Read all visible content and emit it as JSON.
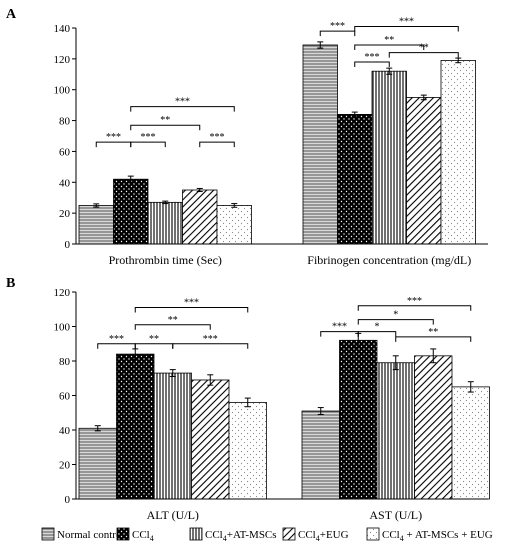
{
  "legend": [
    {
      "label": "Normal control",
      "pattern": "pat-h"
    },
    {
      "label": "CCl4",
      "pattern": "pat-dots"
    },
    {
      "label": "CCl4+AT-MSCs",
      "pattern": "pat-v"
    },
    {
      "label": "CCl4+EUG",
      "pattern": "pat-diag"
    },
    {
      "label": "CCl4 + AT-MSCs + EUG",
      "pattern": "pat-lightdots"
    }
  ],
  "chart_data": [
    {
      "type": "bar",
      "panel_label": "A",
      "categories": [
        "Prothrombin time (Sec)",
        "Fibrinogen concentration (mg/dL)"
      ],
      "series": [
        {
          "name": "Normal control",
          "values": [
            25,
            129
          ],
          "errors": [
            1,
            2
          ]
        },
        {
          "name": "CCl4",
          "values": [
            42,
            84
          ],
          "errors": [
            2,
            1.5
          ]
        },
        {
          "name": "CCl4+AT-MSCs",
          "values": [
            27,
            112
          ],
          "errors": [
            0.8,
            2
          ]
        },
        {
          "name": "CCl4+EUG",
          "values": [
            35,
            95
          ],
          "errors": [
            1,
            1.5
          ]
        },
        {
          "name": "CCl4 + AT-MSCs + EUG",
          "values": [
            25,
            119
          ],
          "errors": [
            1.2,
            1.5
          ]
        }
      ],
      "ylim": [
        0,
        140
      ],
      "yticks": [
        0,
        20,
        40,
        60,
        80,
        100,
        120,
        140
      ],
      "significance": [
        {
          "category": 0,
          "from": 0,
          "to": 1,
          "y": 66,
          "label": "***"
        },
        {
          "category": 0,
          "from": 1,
          "to": 2,
          "y": 66,
          "label": "***"
        },
        {
          "category": 0,
          "from": 3,
          "to": 4,
          "y": 66,
          "label": "***"
        },
        {
          "category": 0,
          "from": 1,
          "to": 3,
          "y": 77,
          "label": "**"
        },
        {
          "category": 0,
          "from": 1,
          "to": 4,
          "y": 89,
          "label": "***"
        },
        {
          "category": 1,
          "from": 0,
          "to": 1,
          "y": 138,
          "label": "***"
        },
        {
          "category": 1,
          "from": 1,
          "to": 2,
          "y": 118,
          "label": "***"
        },
        {
          "category": 1,
          "from": 1,
          "to": 3,
          "y": 129,
          "label": "**"
        },
        {
          "category": 1,
          "from": 2,
          "to": 4,
          "y": 124,
          "label": "**"
        },
        {
          "category": 1,
          "from": 1,
          "to": 4,
          "y": 141,
          "label": "***"
        }
      ]
    },
    {
      "type": "bar",
      "panel_label": "B",
      "categories": [
        "ALT (U/L)",
        "AST (U/L)"
      ],
      "series": [
        {
          "name": "Normal control",
          "values": [
            41,
            51
          ],
          "errors": [
            1.5,
            2
          ]
        },
        {
          "name": "CCl4",
          "values": [
            84,
            92
          ],
          "errors": [
            3,
            4
          ]
        },
        {
          "name": "CCl4+AT-MSCs",
          "values": [
            73,
            79
          ],
          "errors": [
            2,
            4
          ]
        },
        {
          "name": "CCl4+EUG",
          "values": [
            69,
            83
          ],
          "errors": [
            3,
            4
          ]
        },
        {
          "name": "CCl4 + AT-MSCs + EUG",
          "values": [
            56,
            65
          ],
          "errors": [
            2.5,
            3
          ]
        }
      ],
      "ylim": [
        0,
        120
      ],
      "yticks": [
        0,
        20,
        40,
        60,
        80,
        100,
        120
      ],
      "significance": [
        {
          "category": 0,
          "from": 0,
          "to": 1,
          "y": 90,
          "label": "***"
        },
        {
          "category": 0,
          "from": 1,
          "to": 2,
          "y": 90,
          "label": "**"
        },
        {
          "category": 0,
          "from": 2,
          "to": 4,
          "y": 90,
          "label": "***"
        },
        {
          "category": 0,
          "from": 1,
          "to": 3,
          "y": 101,
          "label": "**"
        },
        {
          "category": 0,
          "from": 1,
          "to": 4,
          "y": 111,
          "label": "***"
        },
        {
          "category": 1,
          "from": 0,
          "to": 1,
          "y": 97,
          "label": "***"
        },
        {
          "category": 1,
          "from": 1,
          "to": 2,
          "y": 97,
          "label": "*"
        },
        {
          "category": 1,
          "from": 1,
          "to": 3,
          "y": 104,
          "label": "*"
        },
        {
          "category": 1,
          "from": 2,
          "to": 4,
          "y": 94,
          "label": "**"
        },
        {
          "category": 1,
          "from": 1,
          "to": 4,
          "y": 112,
          "label": "***"
        }
      ]
    }
  ]
}
